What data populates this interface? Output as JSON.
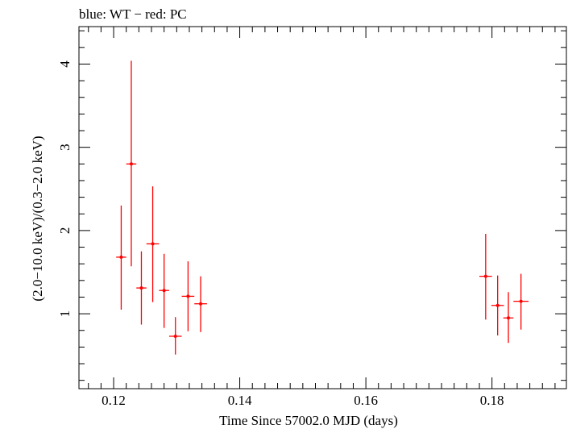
{
  "chart_data": {
    "type": "scatter",
    "title": "blue: WT − red: PC",
    "xlabel": "Time Since 57002.0 MJD (days)",
    "ylabel": "(2.0−10.0 keV)/(0.3−2.0 keV)",
    "xlim": [
      0.1145,
      0.1918
    ],
    "ylim": [
      0.1,
      4.45
    ],
    "xticks": [
      0.12,
      0.14,
      0.16,
      0.18
    ],
    "xtick_labels": [
      "0.12",
      "0.14",
      "0.16",
      "0.18"
    ],
    "yticks": [
      1,
      2,
      3,
      4
    ],
    "ytick_labels": [
      "1",
      "2",
      "3",
      "4"
    ],
    "grid": false,
    "series": [
      {
        "name": "PC",
        "color": "#ff0000",
        "points": [
          {
            "x": 0.1212,
            "xerr": 0.0008,
            "y": 1.68,
            "ylo": 1.05,
            "yhi": 2.3
          },
          {
            "x": 0.1228,
            "xerr": 0.0008,
            "y": 2.8,
            "ylo": 1.57,
            "yhi": 4.04
          },
          {
            "x": 0.1244,
            "xerr": 0.0008,
            "y": 1.31,
            "ylo": 0.87,
            "yhi": 1.75
          },
          {
            "x": 0.1262,
            "xerr": 0.001,
            "y": 1.84,
            "ylo": 1.14,
            "yhi": 2.53
          },
          {
            "x": 0.128,
            "xerr": 0.0008,
            "y": 1.28,
            "ylo": 0.83,
            "yhi": 1.72
          },
          {
            "x": 0.1298,
            "xerr": 0.001,
            "y": 0.73,
            "ylo": 0.51,
            "yhi": 0.96
          },
          {
            "x": 0.1318,
            "xerr": 0.001,
            "y": 1.21,
            "ylo": 0.79,
            "yhi": 1.63
          },
          {
            "x": 0.1338,
            "xerr": 0.001,
            "y": 1.12,
            "ylo": 0.78,
            "yhi": 1.45
          },
          {
            "x": 0.179,
            "xerr": 0.001,
            "y": 1.45,
            "ylo": 0.93,
            "yhi": 1.96
          },
          {
            "x": 0.1809,
            "xerr": 0.001,
            "y": 1.1,
            "ylo": 0.74,
            "yhi": 1.46
          },
          {
            "x": 0.1826,
            "xerr": 0.0008,
            "y": 0.95,
            "ylo": 0.65,
            "yhi": 1.26
          },
          {
            "x": 0.1846,
            "xerr": 0.0012,
            "y": 1.15,
            "ylo": 0.81,
            "yhi": 1.48
          }
        ]
      }
    ]
  }
}
